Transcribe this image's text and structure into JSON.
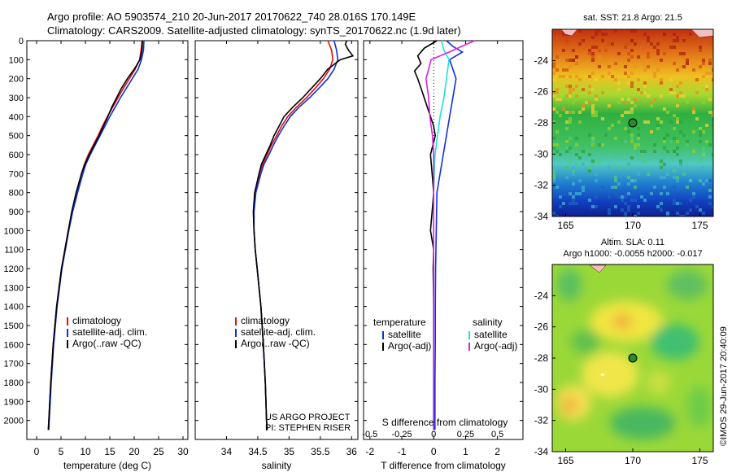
{
  "header": {
    "line1": "Argo profile: AO 5903574_210 20-Jun-2017 20170622_740 28.016S 170.149E",
    "line2": "Climatology: CARS2009. Satellite-adjusted climatology: synTS_20170622.nc (1.9d later)"
  },
  "chart_data": [
    {
      "type": "line",
      "panel": "temperature",
      "xlabel": "temperature (deg C)",
      "ylabel": "",
      "xlim": [
        -2,
        31
      ],
      "ylim": [
        2100,
        0
      ],
      "xticks": [
        "0",
        "5",
        "10",
        "15",
        "20",
        "25",
        "30"
      ],
      "yticks": [
        "0",
        "100",
        "200",
        "300",
        "400",
        "500",
        "600",
        "700",
        "800",
        "900",
        "1000",
        "1100",
        "1200",
        "1300",
        "1400",
        "1500",
        "1600",
        "1700",
        "1800",
        "1900",
        "2000"
      ],
      "legend": [
        "climatology",
        "satellite-adj. clim.",
        "Argo(..raw -QC)"
      ],
      "series": [
        {
          "name": "climatology",
          "color": "#e01010",
          "depth": [
            0,
            50,
            100,
            150,
            200,
            250,
            300,
            350,
            400,
            450,
            500,
            550,
            600,
            650,
            700,
            800,
            900,
            1000,
            1200,
            1400,
            1600,
            1800,
            2000,
            2050
          ],
          "values": [
            21.6,
            21.4,
            21.1,
            20.2,
            19.0,
            17.8,
            16.7,
            15.6,
            14.5,
            13.5,
            12.6,
            11.6,
            10.6,
            9.8,
            9.2,
            8.2,
            7.3,
            6.5,
            5.1,
            4.1,
            3.4,
            2.9,
            2.5,
            2.4
          ]
        },
        {
          "name": "satellite-adj. clim.",
          "color": "#1030e0",
          "depth": [
            0,
            50,
            100,
            150,
            200,
            250,
            300,
            350,
            400,
            450,
            500,
            550,
            600,
            650,
            700,
            800,
            900,
            1000,
            1200,
            1400,
            1600,
            1800,
            2000,
            2050
          ],
          "values": [
            22.0,
            21.9,
            21.5,
            20.8,
            19.6,
            18.4,
            17.2,
            16.1,
            15.0,
            14.0,
            13.0,
            12.0,
            11.0,
            10.1,
            9.5,
            8.4,
            7.4,
            6.6,
            5.2,
            4.2,
            3.5,
            3.0,
            2.6,
            2.5
          ]
        },
        {
          "name": "Argo(..raw -QC)",
          "color": "#000000",
          "depth": [
            0,
            50,
            100,
            150,
            200,
            250,
            300,
            350,
            400,
            450,
            500,
            550,
            600,
            650,
            700,
            800,
            900,
            1000,
            1200,
            1400,
            1600,
            1800,
            2000,
            2050
          ],
          "values": [
            21.7,
            21.6,
            21.2,
            20.0,
            18.6,
            17.4,
            16.4,
            15.4,
            14.6,
            13.7,
            12.8,
            11.8,
            10.8,
            9.9,
            9.2,
            8.1,
            7.2,
            6.5,
            5.1,
            4.1,
            3.4,
            2.9,
            2.5,
            2.4
          ]
        }
      ]
    },
    {
      "type": "line",
      "panel": "salinity",
      "xlabel": "salinity",
      "xlim": [
        33.5,
        36.1
      ],
      "ylim": [
        2100,
        0
      ],
      "xticks": [
        "34",
        "34.5",
        "35",
        "35.5",
        "36"
      ],
      "legend": [
        "climatology",
        "satellite-adj. clim.",
        "Argo(..raw -QC)"
      ],
      "annotation": [
        "US ARGO PROJECT",
        "PI: STEPHEN RISER"
      ],
      "series": [
        {
          "name": "climatology",
          "color": "#e01010",
          "depth": [
            0,
            50,
            100,
            150,
            200,
            250,
            300,
            350,
            400,
            450,
            500,
            550,
            600,
            650,
            700,
            800,
            900,
            1000,
            1100,
            1200,
            1300,
            1400,
            1600,
            1800,
            2000,
            2050
          ],
          "values": [
            35.62,
            35.68,
            35.7,
            35.65,
            35.55,
            35.42,
            35.28,
            35.12,
            34.98,
            34.88,
            34.8,
            34.72,
            34.65,
            34.58,
            34.53,
            34.46,
            34.43,
            34.44,
            34.46,
            34.49,
            34.52,
            34.55,
            34.59,
            34.62,
            34.64,
            34.65
          ]
        },
        {
          "name": "satellite-adj. clim.",
          "color": "#1030e0",
          "depth": [
            0,
            50,
            100,
            150,
            200,
            250,
            300,
            350,
            400,
            450,
            500,
            550,
            600,
            650,
            700,
            800,
            900,
            1000,
            1100,
            1200,
            1300,
            1400,
            1600,
            1800,
            2000,
            2050
          ],
          "values": [
            35.72,
            35.76,
            35.78,
            35.72,
            35.62,
            35.48,
            35.33,
            35.16,
            35.02,
            34.92,
            34.83,
            34.75,
            34.68,
            34.6,
            34.55,
            34.47,
            34.44,
            34.44,
            34.46,
            34.49,
            34.52,
            34.55,
            34.59,
            34.62,
            34.64,
            34.65
          ]
        },
        {
          "name": "Argo(..raw -QC)",
          "color": "#000000",
          "depth": [
            0,
            20,
            50,
            80,
            100,
            150,
            200,
            250,
            300,
            350,
            400,
            450,
            500,
            550,
            600,
            650,
            700,
            800,
            900,
            1000,
            1100,
            1200,
            1300,
            1400,
            1600,
            1800,
            2000,
            2050
          ],
          "values": [
            35.92,
            35.9,
            35.95,
            36.02,
            35.82,
            35.62,
            35.5,
            35.36,
            35.22,
            35.06,
            34.92,
            34.84,
            34.76,
            34.7,
            34.63,
            34.56,
            34.52,
            34.45,
            34.43,
            34.44,
            34.46,
            34.49,
            34.52,
            34.55,
            34.59,
            34.62,
            34.64,
            34.65
          ]
        }
      ]
    },
    {
      "type": "line",
      "panel": "differences",
      "xlabel": "T difference from climatology",
      "x2label": "S difference from climatology",
      "xlim": [
        -2.2,
        2.8
      ],
      "ylim": [
        2100,
        0
      ],
      "xticks": [
        "-2",
        "-1",
        "0",
        "1",
        "2"
      ],
      "x2ticks": [
        "-0.5",
        "-0.25",
        "0",
        "0.25",
        "0.5"
      ],
      "legend_groups": [
        {
          "heading": "temperature",
          "items": [
            "satellite",
            "Argo(-adj)"
          ]
        },
        {
          "heading": "salinity",
          "items": [
            "satellite",
            "Argo(-adj)"
          ]
        }
      ],
      "series": [
        {
          "name": "temperature satellite",
          "color": "#1030e0",
          "depth": [
            0,
            30,
            60,
            100,
            150,
            200,
            300,
            400,
            500,
            600,
            700,
            800,
            1000,
            1200,
            1400,
            1600,
            1800,
            2000,
            2050
          ],
          "values": [
            0.4,
            0.6,
            0.9,
            0.5,
            0.6,
            0.7,
            0.6,
            0.5,
            0.4,
            0.3,
            0.2,
            0.1,
            0.08,
            0.06,
            0.05,
            0.05,
            0.04,
            0.04,
            0.04
          ]
        },
        {
          "name": "temperature Argo(-adj)",
          "color": "#000000",
          "depth": [
            0,
            40,
            80,
            120,
            160,
            200,
            250,
            300,
            350,
            400,
            450,
            500,
            600,
            700,
            800,
            900,
            1000,
            1100,
            1200,
            1400,
            1600,
            1800,
            2000,
            2050
          ],
          "values": [
            0.1,
            -0.3,
            -0.5,
            -0.4,
            -0.6,
            -0.5,
            -0.4,
            -0.3,
            -0.2,
            -0.1,
            0.0,
            0.05,
            -0.1,
            -0.05,
            0.0,
            -0.05,
            -0.1,
            0.0,
            -0.02,
            0.0,
            0.0,
            0.0,
            0.0,
            0.0
          ]
        },
        {
          "name": "salinity satellite",
          "color": "#20e0e0",
          "depth": [
            0,
            50,
            100,
            200,
            300,
            400,
            500,
            600,
            800,
            1000,
            1200,
            1400,
            1600,
            1800,
            2000,
            2050
          ],
          "values": [
            0.06,
            0.08,
            0.12,
            0.1,
            0.08,
            0.05,
            0.03,
            0.01,
            0.0,
            0.0,
            0.0,
            0.0,
            0.0,
            0.0,
            0.0,
            0.0
          ]
        },
        {
          "name": "salinity Argo(-adj)",
          "color": "#e020e0",
          "depth": [
            0,
            30,
            60,
            100,
            150,
            200,
            250,
            300,
            400,
            500,
            600,
            700,
            800,
            1000,
            1200,
            1400,
            1600,
            1800,
            2000,
            2050
          ],
          "values": [
            0.32,
            0.22,
            0.12,
            -0.02,
            -0.04,
            -0.06,
            -0.05,
            -0.04,
            -0.03,
            -0.01,
            0.0,
            0.0,
            0.0,
            0.0,
            0.0,
            0.0,
            0.0,
            0.0,
            0.0,
            0.0
          ]
        }
      ]
    },
    {
      "type": "heatmap",
      "panel": "sst-map",
      "title": "sat. SST: 21.8  Argo: 21.5",
      "xlim": [
        164,
        176
      ],
      "ylim": [
        -34,
        -22
      ],
      "xticks": [
        "165",
        "170",
        "175"
      ],
      "yticks": [
        "-24",
        "-26",
        "-28",
        "-30",
        "-32",
        "-34"
      ],
      "marker": {
        "lon": 170.149,
        "lat": -28.016
      }
    },
    {
      "type": "heatmap",
      "panel": "sla-map",
      "title": "Altim. SLA: 0.11",
      "subtitle": "Argo h1000: -0.0055  h2000: -0.017",
      "xlim": [
        164,
        176
      ],
      "ylim": [
        -34,
        -22
      ],
      "xticks": [
        "165",
        "170",
        "175"
      ],
      "yticks": [
        "-24",
        "-26",
        "-28",
        "-30",
        "-32",
        "-34"
      ],
      "marker": {
        "lon": 170.149,
        "lat": -28.016
      }
    }
  ],
  "footer": {
    "credit": "©IMOS 29-Jun-2017 20:40:09"
  }
}
